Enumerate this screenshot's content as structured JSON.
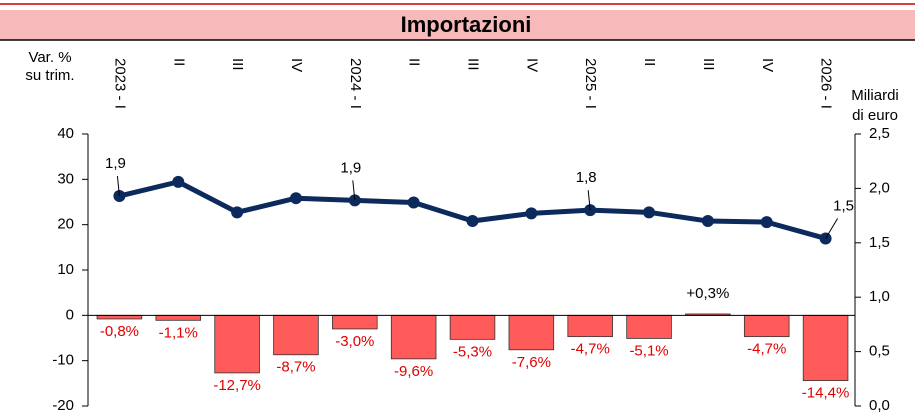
{
  "chart_data": {
    "type": "bar_line",
    "title": "Importazioni",
    "y_label": [
      "Var. %",
      "su trim."
    ],
    "y2_label": [
      "Miliardi",
      "di euro"
    ],
    "categories": [
      "2023 - I",
      "II",
      "III",
      "IV",
      "2024 - I",
      "II",
      "III",
      "IV",
      "2025 - I",
      "II",
      "III",
      "IV",
      "2026 - I"
    ],
    "series": [
      {
        "type": "bar",
        "color": "#ff5b5b",
        "label_color": "#e00000",
        "values": [
          -0.8,
          -1.1,
          -12.7,
          -8.7,
          -3.0,
          -9.6,
          -5.3,
          -7.6,
          -4.7,
          -5.1,
          0.3,
          -4.7,
          -14.4
        ],
        "value_labels": [
          "-0,8%",
          "-1,1%",
          "-12,7%",
          "-8,7%",
          "-3,0%",
          "-9,6%",
          "-5,3%",
          "-7,6%",
          "-4,7%",
          "-5,1%",
          "+0,3%",
          "-4,7%",
          "-14,4%"
        ]
      },
      {
        "type": "line",
        "axis": "y2",
        "color": "#0d2a5c",
        "values": [
          1.93,
          2.06,
          1.78,
          1.91,
          1.89,
          1.87,
          1.7,
          1.77,
          1.8,
          1.78,
          1.7,
          1.69,
          1.54
        ],
        "value_labels": [
          "1,9",
          null,
          null,
          null,
          "1,9",
          null,
          null,
          null,
          "1,8",
          null,
          null,
          null,
          "1,5"
        ]
      }
    ],
    "ylim": [
      -20,
      40
    ],
    "yticks": [
      -20,
      -10,
      0,
      10,
      20,
      30,
      40
    ],
    "y2lim": [
      0,
      2.5
    ],
    "y2ticks": [
      {
        "value": 0,
        "label": "0,0"
      },
      {
        "value": 0.5,
        "label": "0,5"
      },
      {
        "value": 1,
        "label": "1,0"
      },
      {
        "value": 1.5,
        "label": "1,5"
      },
      {
        "value": 2,
        "label": "2,0"
      },
      {
        "value": 2.5,
        "label": "2,5"
      }
    ]
  }
}
